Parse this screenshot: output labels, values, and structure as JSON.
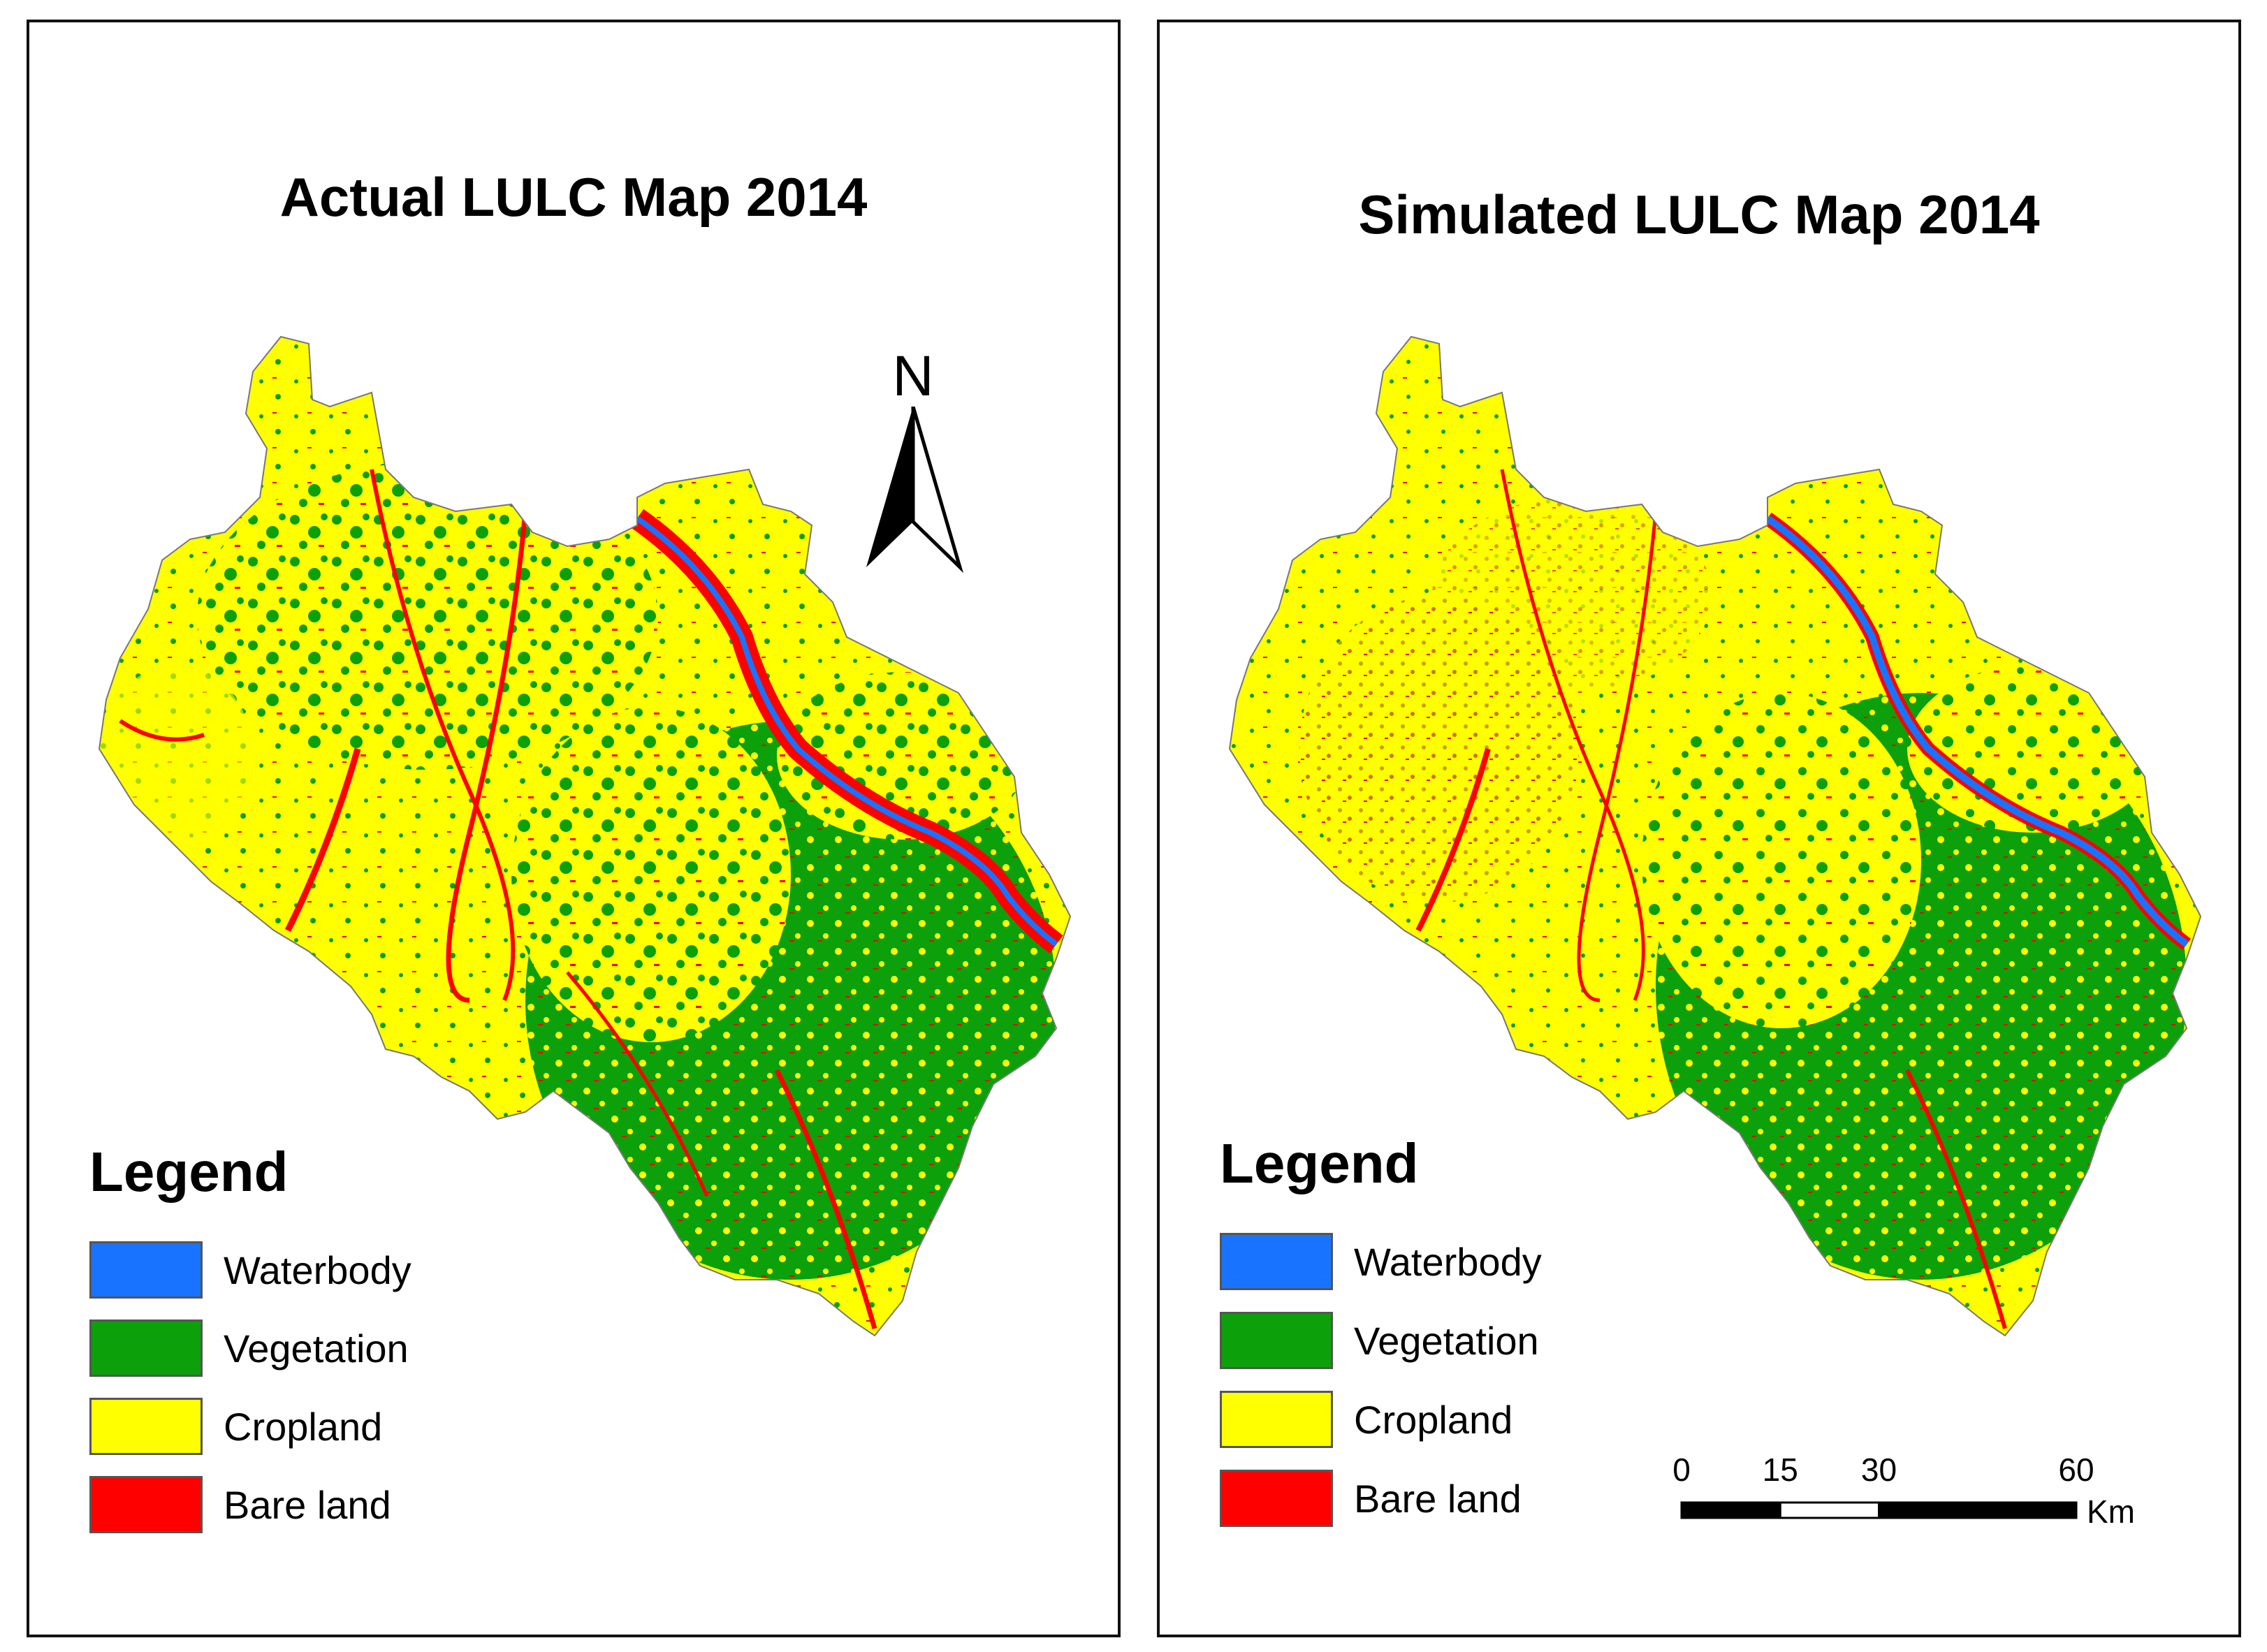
{
  "colors": {
    "waterbody": "#1874ff",
    "vegetation": "#0ca00a",
    "cropland": "#ffff00",
    "bare_land": "#ff0000",
    "border": "#555555"
  },
  "panels": [
    {
      "title": "Actual LULC Map 2014",
      "legend": {
        "title": "Legend",
        "items": [
          {
            "label": "Waterbody",
            "color": "#1874ff"
          },
          {
            "label": "Vegetation",
            "color": "#0ca00a"
          },
          {
            "label": "Cropland",
            "color": "#ffff00"
          },
          {
            "label": "Bare land",
            "color": "#ff0000"
          }
        ]
      },
      "north_arrow": {
        "letter": "N",
        "icon": "north-arrow-icon"
      }
    },
    {
      "title": "Simulated LULC Map 2014",
      "legend": {
        "title": "Legend",
        "items": [
          {
            "label": "Waterbody",
            "color": "#1874ff"
          },
          {
            "label": "Vegetation",
            "color": "#0ca00a"
          },
          {
            "label": "Cropland",
            "color": "#ffff00"
          },
          {
            "label": "Bare land",
            "color": "#ff0000"
          }
        ]
      },
      "scale_bar": {
        "ticks": [
          "0",
          "15",
          "30",
          "60"
        ],
        "tick_values": [
          0,
          15,
          30,
          60
        ],
        "unit": "Km"
      }
    }
  ]
}
